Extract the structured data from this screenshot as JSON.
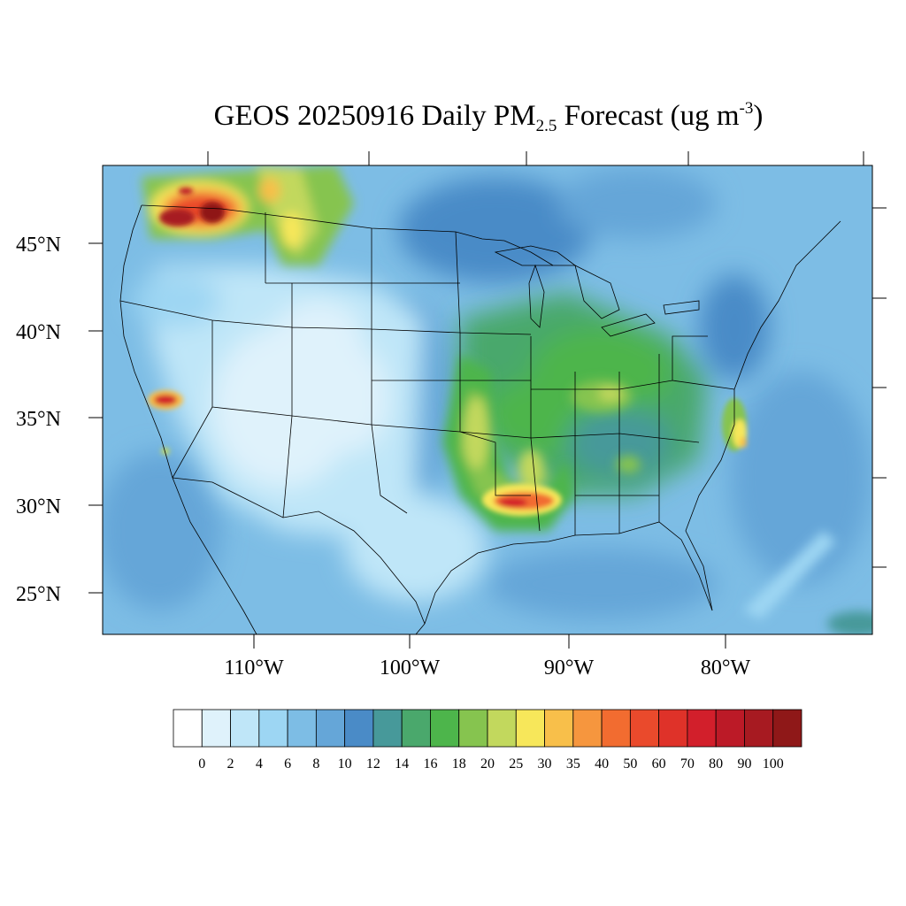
{
  "title": {
    "prefix": "GEOS 20250916 Daily PM",
    "subscript": "2.5",
    "middle": " Forecast (ug m",
    "superscript": "-3",
    "suffix": ")"
  },
  "map": {
    "projection": "lambert-conformal",
    "region": "CONUS",
    "lon_labels": [
      "110°W",
      "100°W",
      "90°W",
      "80°W"
    ],
    "lat_labels": [
      "45°N",
      "40°N",
      "35°N",
      "30°N",
      "25°N"
    ],
    "features": [
      {
        "name": "Washington / Idaho / Montana wildfire smoke",
        "level": "90-100"
      },
      {
        "name": "Central California wildfire smoke",
        "level": "70-90"
      },
      {
        "name": "Louisiana / Texas Gulf coast plume",
        "level": "60-80"
      },
      {
        "name": "Great Plains smoke band",
        "level": "20-25"
      },
      {
        "name": "Ohio Valley haze",
        "level": "16-25"
      },
      {
        "name": "North Carolina coastal plume",
        "level": "25-35"
      }
    ]
  },
  "colorbar": {
    "colors": [
      "#ffffff",
      "#dff2fb",
      "#bfe6f8",
      "#9dd6f3",
      "#7dbde5",
      "#65a6d8",
      "#4a8bc7",
      "#47999a",
      "#4aa86c",
      "#4db54b",
      "#86c44f",
      "#c2d85d",
      "#f7e75a",
      "#f8bf4a",
      "#f6963e",
      "#f26c30",
      "#ea4a2c",
      "#df3229",
      "#d21f2b",
      "#bc1a27",
      "#a71a21",
      "#8f1818"
    ],
    "labels": [
      "0",
      "2",
      "4",
      "6",
      "8",
      "10",
      "12",
      "14",
      "16",
      "18",
      "20",
      "25",
      "30",
      "35",
      "40",
      "50",
      "60",
      "70",
      "80",
      "90",
      "100"
    ]
  }
}
